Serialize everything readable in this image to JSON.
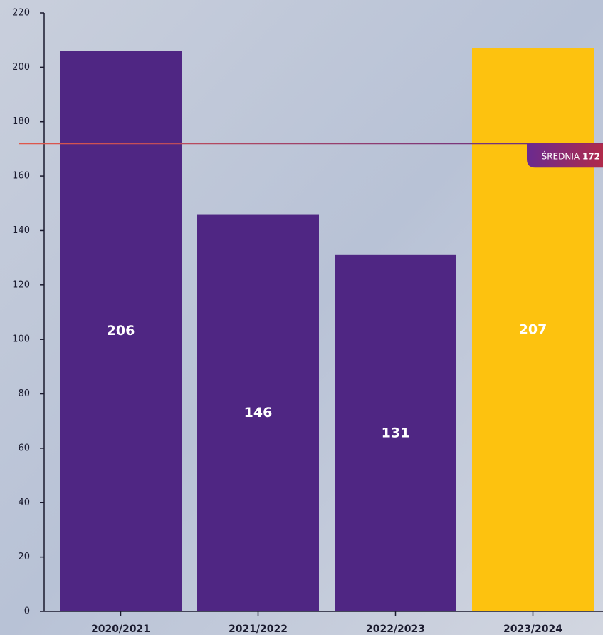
{
  "chart_data": {
    "type": "bar",
    "categories": [
      "2020/2021",
      "2021/2022",
      "2022/2023",
      "2023/2024"
    ],
    "values": [
      206,
      146,
      131,
      207
    ],
    "colors": [
      "#4f2683",
      "#4f2683",
      "#4f2683",
      "#fdc20f"
    ],
    "ylim": [
      0,
      220
    ],
    "yticks": [
      0,
      20,
      40,
      60,
      80,
      100,
      120,
      140,
      160,
      180,
      200,
      220
    ],
    "reference_line": {
      "label": "ŚREDNIA",
      "value": 172,
      "color": "#e0584a"
    }
  }
}
